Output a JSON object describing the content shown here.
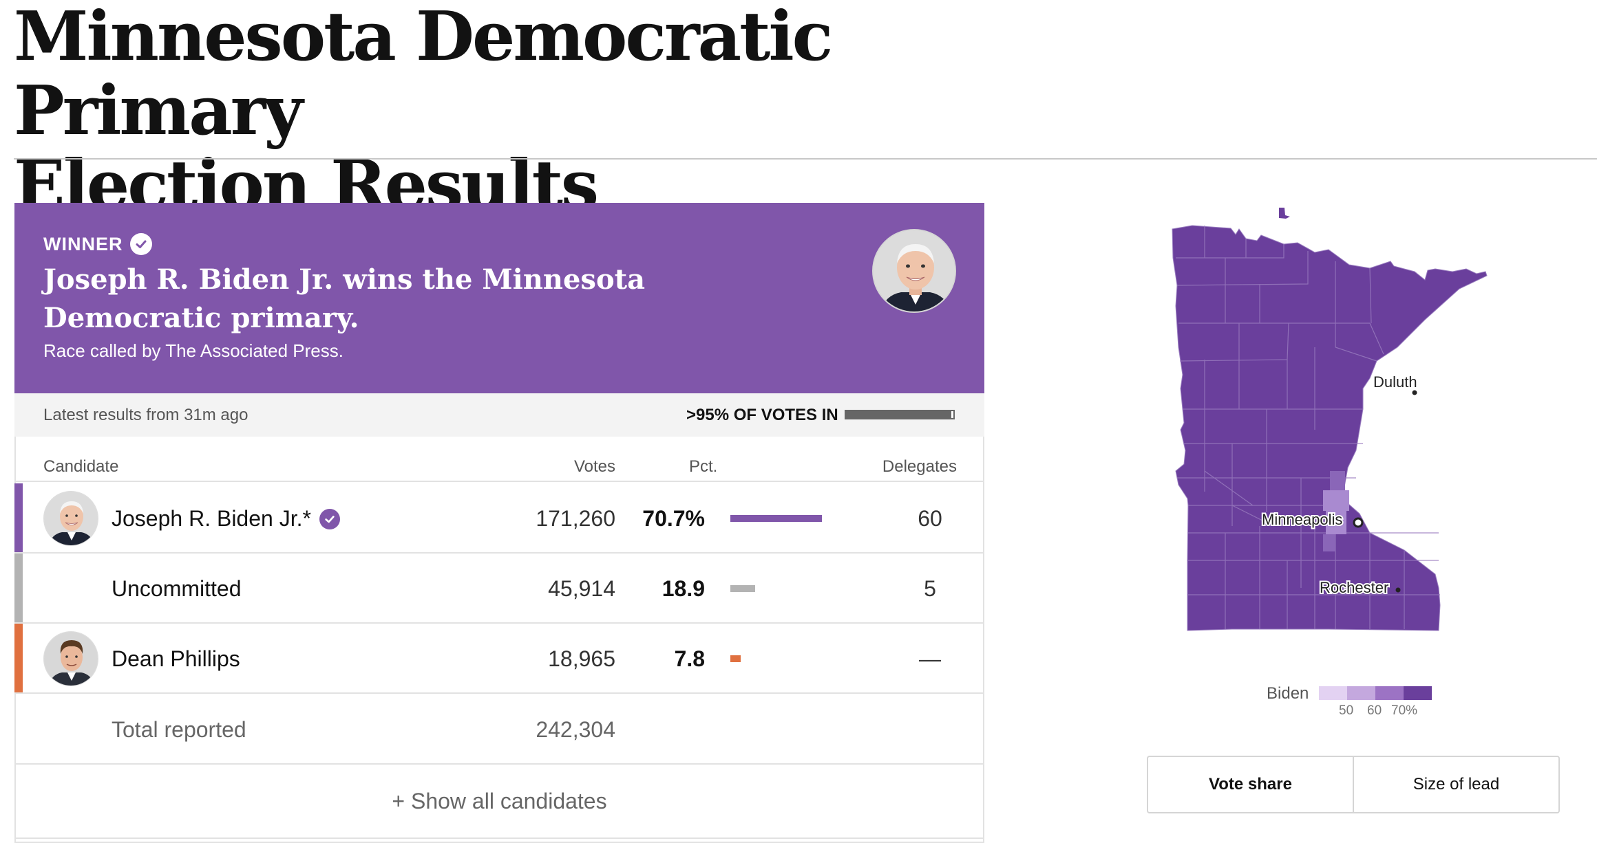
{
  "page": {
    "title_line1": "Minnesota Democratic Primary",
    "title_line2": "Election Results"
  },
  "banner": {
    "winner_label": "WINNER",
    "headline": "Joseph R. Biden Jr. wins the Minnesota Democratic primary.",
    "call_note": "Race called by The Associated Press.",
    "color": "#8056aa"
  },
  "status": {
    "latest": "Latest results from 31m ago",
    "votes_in": ">95% OF VOTES IN",
    "reporting_fraction": 0.98
  },
  "table": {
    "headers": {
      "candidate": "Candidate",
      "votes": "Votes",
      "pct": "Pct.",
      "delegates": "Delegates"
    },
    "rows": [
      {
        "name": "Joseph R. Biden Jr.*",
        "votes": "171,260",
        "pct": "70.7%",
        "pct_value": 70.7,
        "delegates": "60",
        "color": "#8056aa",
        "winner": true,
        "avatar_icon": "biden-portrait"
      },
      {
        "name": "Uncommitted",
        "votes": "45,914",
        "pct": "18.9",
        "pct_value": 18.9,
        "delegates": "5",
        "color": "#b3b3b3",
        "winner": false
      },
      {
        "name": "Dean Phillips",
        "votes": "18,965",
        "pct": "7.8",
        "pct_value": 7.8,
        "delegates": "—",
        "color": "#e0703f",
        "winner": false,
        "avatar_icon": "phillips-portrait"
      }
    ],
    "total_label": "Total reported",
    "total_votes": "242,304",
    "show_all": "+ Show all candidates"
  },
  "map": {
    "cities": [
      "Duluth",
      "Minneapolis",
      "Rochester"
    ],
    "fill_color": "#6a3f9c"
  },
  "legend": {
    "label": "Biden",
    "ticks": [
      "50",
      "60",
      "70%"
    ],
    "colors": [
      "#e3d2f2",
      "#c4a8de",
      "#9c73c4",
      "#6a3f9c"
    ]
  },
  "toggle": {
    "vote_share": "Vote share",
    "size_of_lead": "Size of lead"
  }
}
